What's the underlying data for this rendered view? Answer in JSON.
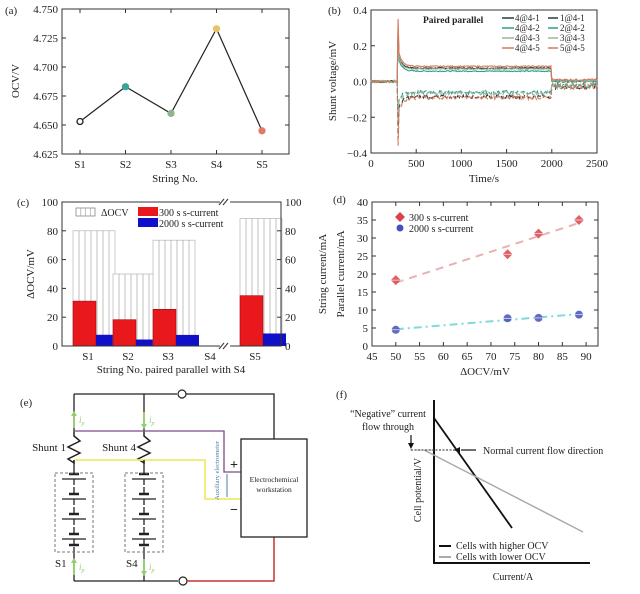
{
  "chart_data": [
    {
      "panel": "(a)",
      "type": "line",
      "categories": [
        "S1",
        "S2",
        "S3",
        "S4",
        "S5"
      ],
      "values": [
        4.653,
        4.683,
        4.66,
        4.733,
        4.645
      ],
      "marker_colors": [
        "#222222",
        "#3aa597",
        "#8fb58e",
        "#e5c46a",
        "#e07a6a"
      ],
      "xlabel": "String No.",
      "ylabel": "OCV/V",
      "ylim": [
        4.625,
        4.75
      ],
      "yticks": [
        "4.625",
        "4.650",
        "4.675",
        "4.700",
        "4.725",
        "4.750"
      ]
    },
    {
      "panel": "(b)",
      "type": "line",
      "xlabel": "Time/s",
      "ylabel": "Shunt voltage/mV",
      "xlim": [
        0,
        2500
      ],
      "ylim": [
        -0.4,
        0.4
      ],
      "xticks": [
        "0",
        "500",
        "1000",
        "1500",
        "2000",
        "2500"
      ],
      "yticks": [
        "−0.4",
        "−0.2",
        "0.0",
        "0.2",
        "0.4"
      ],
      "legend_title": "Paired parallel",
      "legend_position": "top-right",
      "series": [
        {
          "name": "4@4-1",
          "style": "solid",
          "color": "#2a3a35",
          "pre": 0.0,
          "spike": 0.3,
          "plateau": 0.075,
          "after": 0.005
        },
        {
          "name": "4@4-2",
          "style": "solid",
          "color": "#2f9e8a",
          "pre": 0.0,
          "spike": 0.28,
          "plateau": 0.058,
          "after": 0.0
        },
        {
          "name": "4@4-3",
          "style": "solid",
          "color": "#9ab59a",
          "pre": 0.0,
          "spike": 0.3,
          "plateau": 0.07,
          "after": 0.005
        },
        {
          "name": "4@4-5",
          "style": "solid",
          "color": "#d8775a",
          "pre": 0.0,
          "spike": 0.35,
          "plateau": 0.085,
          "after": 0.01
        },
        {
          "name": "1@4-1",
          "style": "dashed",
          "color": "#2a3a35",
          "pre": 0.0,
          "spike": -0.32,
          "plateau": -0.085,
          "after": -0.03
        },
        {
          "name": "2@4-2",
          "style": "dashed",
          "color": "#2f9e8a",
          "pre": 0.0,
          "spike": -0.22,
          "plateau": -0.06,
          "after": -0.02
        },
        {
          "name": "3@4-3",
          "style": "dashed",
          "color": "#9ab59a",
          "pre": 0.0,
          "spike": -0.25,
          "plateau": -0.065,
          "after": -0.02
        },
        {
          "name": "5@4-5",
          "style": "dashed",
          "color": "#d8775a",
          "pre": 0.0,
          "spike": -0.36,
          "plateau": -0.09,
          "after": -0.03
        }
      ],
      "switch_on_s": 300,
      "switch_off_s": 2000
    },
    {
      "panel": "(c)",
      "type": "bar",
      "categories": [
        "S1",
        "S2",
        "S3",
        "S4",
        "S5"
      ],
      "xlabel": "String No. paired parallel with S4",
      "ylabel": "ΔOCV/mV",
      "ylabel_right": "String current/mA",
      "ylim": [
        0,
        100
      ],
      "ylim_right": [
        0,
        100
      ],
      "yticks": [
        "0",
        "20",
        "40",
        "60",
        "80",
        "100"
      ],
      "axis_break_at": "S4",
      "series": [
        {
          "name": "ΔOCV",
          "color": "#ffffff",
          "pattern": "vertical-lines",
          "values": [
            80,
            50,
            73.5,
            null,
            88.5
          ]
        },
        {
          "name": "300 s s-current",
          "color": "#e8181c",
          "values": [
            31.2,
            18.3,
            25.5,
            null,
            35.0
          ]
        },
        {
          "name": "2000 s s-current",
          "color": "#1010c8",
          "values": [
            7.8,
            4.5,
            7.7,
            null,
            8.7
          ]
        }
      ]
    },
    {
      "panel": "(d)",
      "type": "scatter",
      "xlabel": "ΔOCV/mV",
      "ylabel": "Parallel current/mA",
      "xlim": [
        45,
        92.5
      ],
      "ylim": [
        0,
        40
      ],
      "xticks": [
        "45",
        "50",
        "55",
        "60",
        "65",
        "70",
        "75",
        "80",
        "85",
        "90"
      ],
      "yticks": [
        "0",
        "5",
        "10",
        "15",
        "20",
        "25",
        "30",
        "35",
        "40"
      ],
      "legend_position": "top-left",
      "series": [
        {
          "name": "300 s s-current",
          "color": "#d9444b",
          "fit_color": "#e8b2b4",
          "fit_style": "dashed",
          "x": [
            50,
            73.5,
            80,
            88.5
          ],
          "y": [
            18.3,
            25.5,
            31.2,
            35.0
          ]
        },
        {
          "name": "2000 s s-current",
          "color": "#4a4fb8",
          "fit_color": "#7fdada",
          "fit_style": "dash-dot",
          "x": [
            50,
            73.5,
            80,
            88.5
          ],
          "y": [
            4.5,
            7.7,
            7.8,
            8.7
          ]
        }
      ]
    },
    {
      "panel": "(f)",
      "type": "line",
      "xlabel": "Current/A",
      "ylabel": "Cell potential/V",
      "annotations": [
        "“Negative” current",
        "flow through",
        "Normal current flow direction"
      ],
      "series": [
        {
          "name": "Cells with higher OCV",
          "color": "#111111"
        },
        {
          "name": "Cells with lower OCV",
          "color": "#aaaaaa"
        }
      ]
    }
  ],
  "diagram_e": {
    "panel": "(e)",
    "shunt1_label": "Shunt 1",
    "shunt4_label": "Shunt 4",
    "s1_label": "S1",
    "s4_label": "S4",
    "current_label": "i",
    "current_sub": "p",
    "aux_label": "Auxiliary electrometer",
    "plus": "+",
    "minus": "−",
    "workstation_line1": "Electrochemical",
    "workstation_line2": "workstation",
    "colors": {
      "wire": "#222222",
      "purple": "#7a4c8c",
      "yellow": "#f0ea6a",
      "red": "#c83232",
      "arrow": "#8fd16a",
      "aux": "#4a7aa8"
    }
  }
}
